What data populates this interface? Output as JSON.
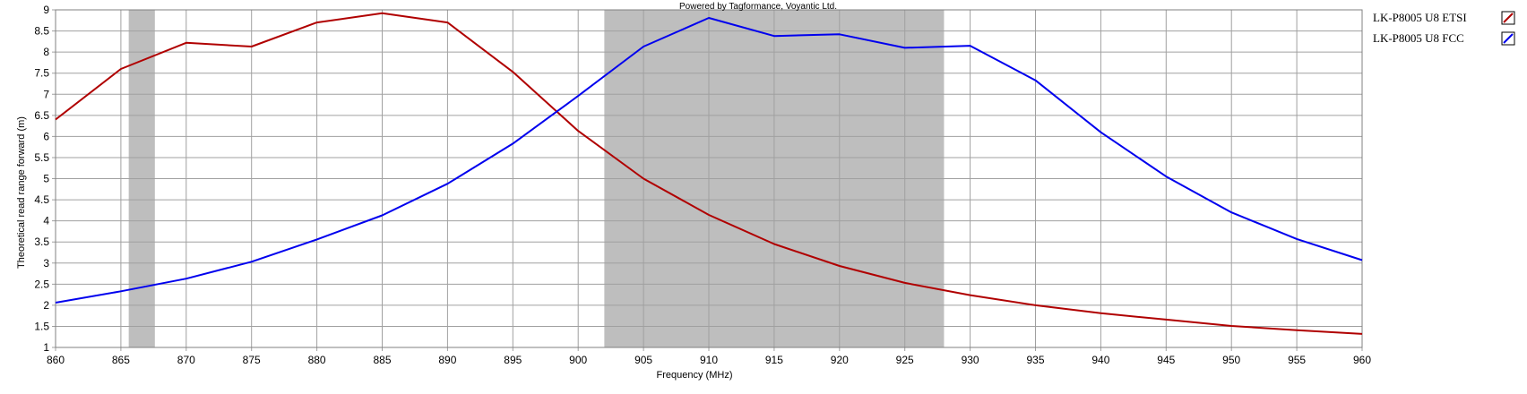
{
  "caption": "Powered by Tagformance, Voyantic Ltd.",
  "chart_data": {
    "type": "line",
    "xlabel": "Frequency (MHz)",
    "ylabel": "Theoretical read range forward (m)",
    "xlim": [
      860,
      960
    ],
    "ylim": [
      1,
      9
    ],
    "x_ticks": [
      860,
      865,
      870,
      875,
      880,
      885,
      890,
      895,
      900,
      905,
      910,
      915,
      920,
      925,
      930,
      935,
      940,
      945,
      950,
      955,
      960
    ],
    "y_ticks": [
      1,
      1.5,
      2,
      2.5,
      3,
      3.5,
      4,
      4.5,
      5,
      5.5,
      6,
      6.5,
      7,
      7.5,
      8,
      8.5,
      9
    ],
    "x_tick_labels": [
      "860",
      "865",
      "870",
      "875",
      "880",
      "885",
      "890",
      "895",
      "900",
      "905",
      "910",
      "915",
      "920",
      "925",
      "930",
      "935",
      "940",
      "945",
      "950",
      "955",
      "960"
    ],
    "y_tick_labels": [
      "1",
      "1.5",
      "2",
      "2.5",
      "3",
      "3.5",
      "4",
      "4.5",
      "5",
      "5.5",
      "6",
      "6.5",
      "7",
      "7.5",
      "8",
      "8.5",
      "9"
    ],
    "grid": true,
    "legend_position": "right",
    "bands": [
      {
        "from": 865.6,
        "to": 867.6,
        "color": "#bebebe"
      },
      {
        "from": 902,
        "to": 928,
        "color": "#bebebe"
      }
    ],
    "x": [
      860,
      865,
      870,
      875,
      880,
      885,
      890,
      895,
      900,
      905,
      910,
      915,
      920,
      925,
      930,
      935,
      940,
      945,
      950,
      955,
      960
    ],
    "series": [
      {
        "name": "LK-P8005 U8 ETSI",
        "color": "#b00000",
        "values": [
          6.4,
          7.6,
          8.22,
          8.13,
          8.7,
          8.92,
          8.7,
          7.53,
          6.13,
          5.0,
          4.14,
          3.45,
          2.93,
          2.53,
          2.24,
          2.0,
          1.81,
          1.66,
          1.51,
          1.41,
          1.32
        ]
      },
      {
        "name": "LK-P8005 U8 FCC",
        "color": "#0000ee",
        "values": [
          2.06,
          2.33,
          2.63,
          3.03,
          3.56,
          4.13,
          4.88,
          5.83,
          6.96,
          8.13,
          8.81,
          8.38,
          8.42,
          8.1,
          8.15,
          7.33,
          6.1,
          5.05,
          4.2,
          3.57,
          3.07
        ]
      }
    ]
  }
}
